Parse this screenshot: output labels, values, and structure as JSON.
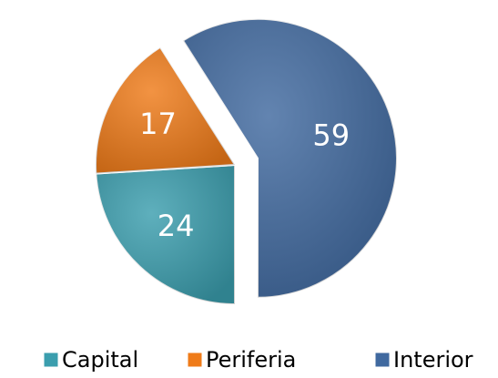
{
  "chart_data": {
    "type": "pie",
    "categories": [
      "Capital",
      "Periferia",
      "Interior"
    ],
    "values": [
      24,
      17,
      59
    ],
    "colors": [
      "#3b9eae",
      "#ef7b19",
      "#40699f"
    ],
    "exploded": "Interior",
    "legend": "bottom"
  }
}
